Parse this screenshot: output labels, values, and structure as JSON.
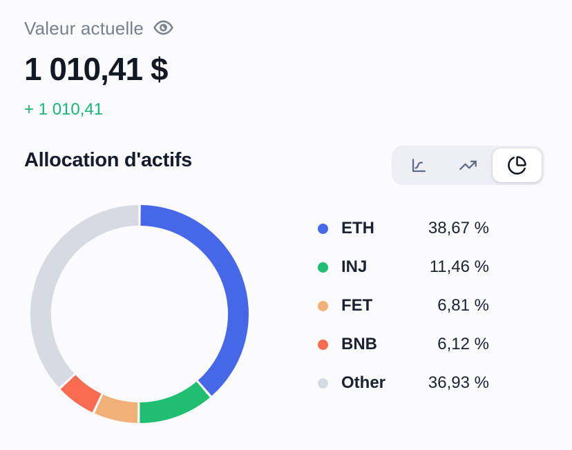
{
  "header": {
    "label": "Valeur actuelle",
    "visibility_icon": "eye-icon",
    "value": "1 010,41 $",
    "change": "+ 1 010,41",
    "change_color": "#13B875"
  },
  "allocation": {
    "title": "Allocation d'actifs",
    "toolbar": {
      "buttons": [
        {
          "icon": "line-chart-icon",
          "selected": false
        },
        {
          "icon": "trending-up-icon",
          "selected": false
        },
        {
          "icon": "pie-chart-icon",
          "selected": true
        }
      ]
    }
  },
  "chart_data": {
    "type": "pie",
    "donut": true,
    "start_at": "top",
    "direction": "clockwise",
    "title": "Allocation d'actifs",
    "legend_position": "right",
    "categories": [
      "ETH",
      "INJ",
      "FET",
      "BNB",
      "Other"
    ],
    "values": [
      38.67,
      11.46,
      6.81,
      6.12,
      36.93
    ],
    "display_values": [
      "38,67 %",
      "11,46 %",
      "6,81 %",
      "6,12 %",
      "36,93 %"
    ],
    "colors": [
      "#4667E8",
      "#1FBE71",
      "#F1B078",
      "#FA6C51",
      "#D6DAE3"
    ]
  },
  "theme": {
    "background": "#FBFBFD",
    "text_dark": "#131825",
    "text_gray": "#76808F",
    "positive_green": "#13B875",
    "toggle_bg": "#EDEFF4",
    "icon_gray": "#5B6A84",
    "icon_dark": "#10151F"
  }
}
